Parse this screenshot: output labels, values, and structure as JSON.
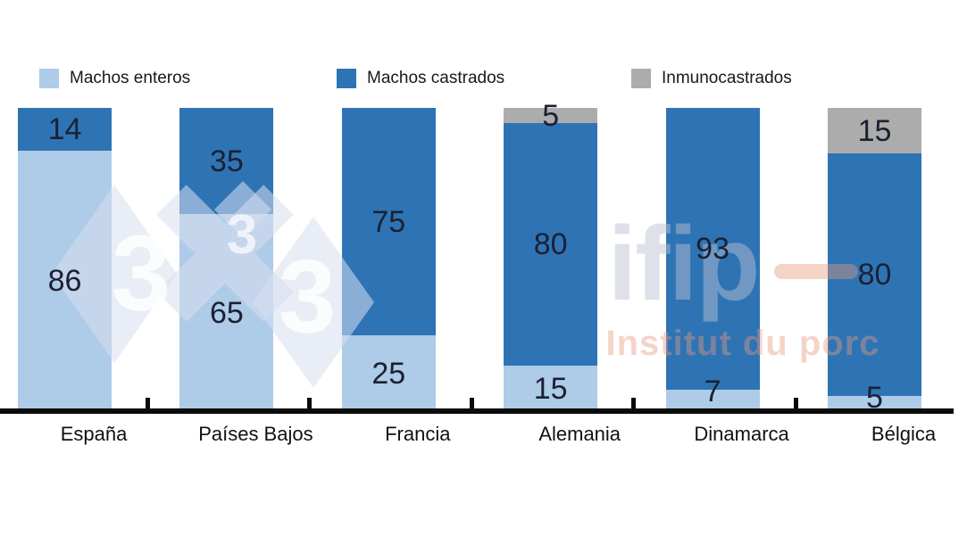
{
  "chart_data": {
    "type": "bar",
    "stacked": true,
    "title": "",
    "categories": [
      "España",
      "Países Bajos",
      "Francia",
      "Alemania",
      "Dinamarca",
      "Bélgica"
    ],
    "series": [
      {
        "name": "Machos enteros",
        "color": "#AECBE8",
        "values": [
          86,
          65,
          25,
          15,
          7,
          5
        ]
      },
      {
        "name": "Machos castrados",
        "color": "#2E74B5",
        "values": [
          14,
          35,
          75,
          80,
          93,
          80
        ]
      },
      {
        "name": "Inmunocastrados",
        "color": "#ACACAC",
        "values": [
          0,
          0,
          0,
          5,
          0,
          15
        ]
      }
    ],
    "ylim": [
      0,
      100
    ],
    "grid": false,
    "legend_position": "top",
    "value_label_color": "#1B2133",
    "category_label_color": "#111111",
    "axis_color": "#0B0B0B"
  },
  "watermarks": {
    "logo333": {
      "glyph": "3",
      "diamond_color": "#D7DEEE"
    },
    "ifip": {
      "name": "ifip",
      "subtitle": "Institut du porc",
      "name_color": "#B9C0D0",
      "accent_color": "#E8987D"
    }
  }
}
